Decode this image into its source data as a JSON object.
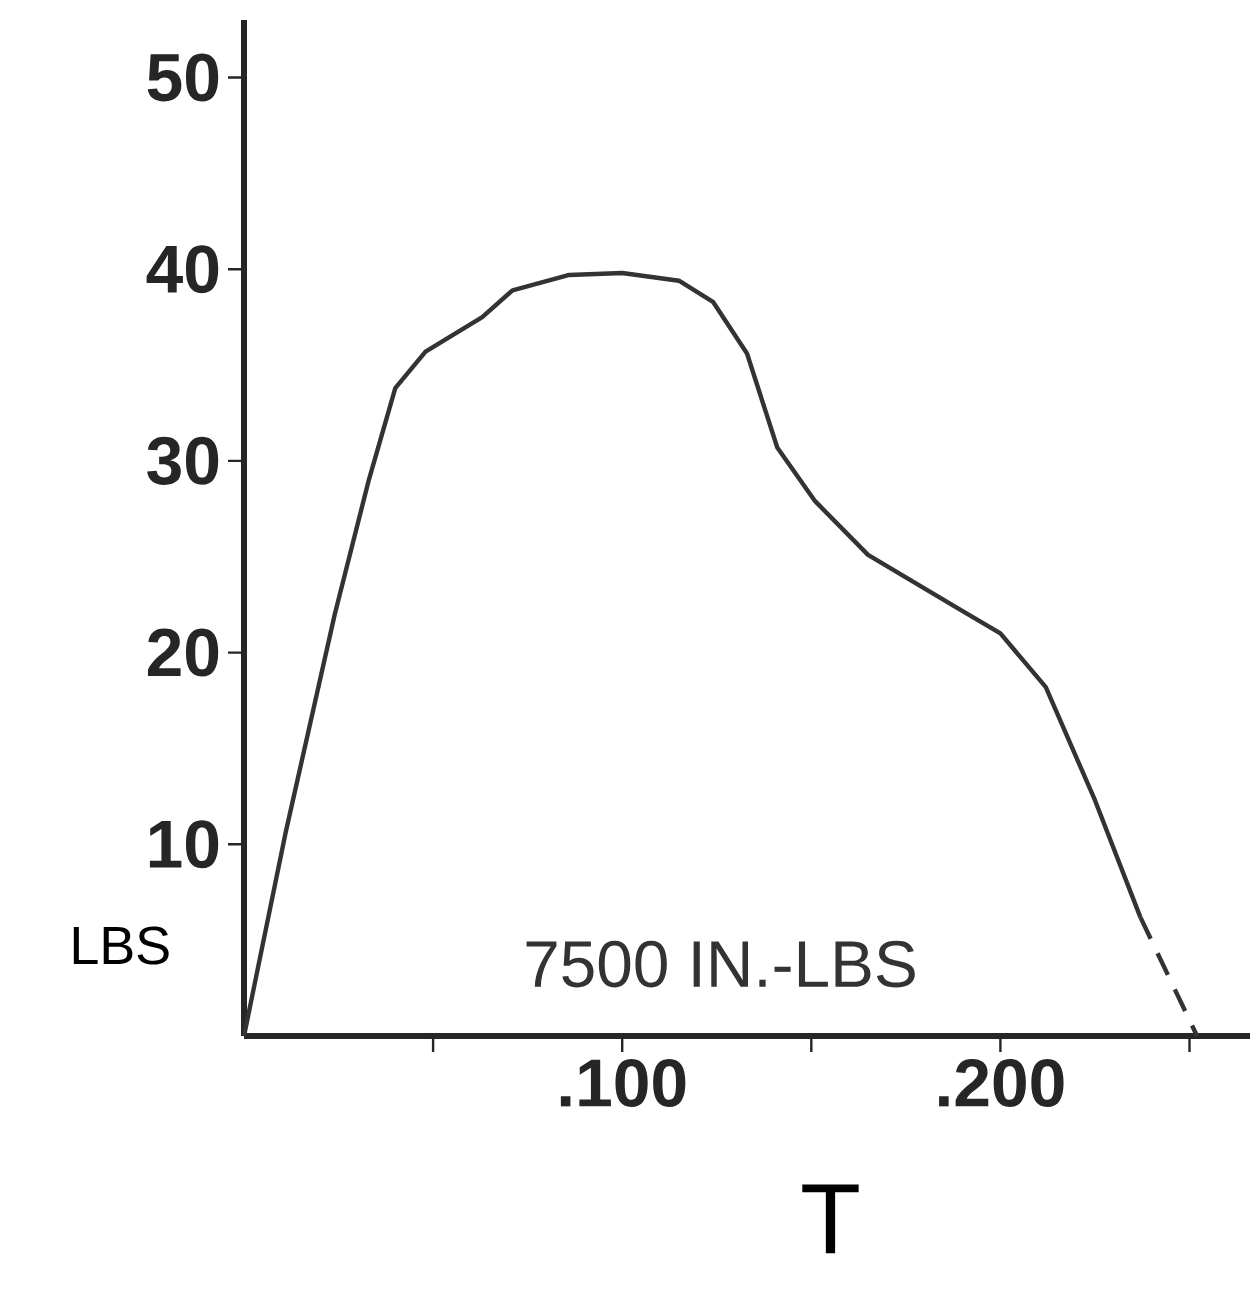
{
  "chart_data": {
    "type": "line",
    "xlabel": "T",
    "ylabel": "LBS",
    "annotations": [
      "7500 IN.-LBS"
    ],
    "xlim": [
      0,
      0.266
    ],
    "ylim": [
      0,
      53
    ],
    "xticks": [
      {
        "value": 0.05,
        "label": null
      },
      {
        "value": 0.1,
        "label": ".100"
      },
      {
        "value": 0.15,
        "label": null
      },
      {
        "value": 0.2,
        "label": ".200"
      },
      {
        "value": 0.25,
        "label": null
      }
    ],
    "yticks": [
      10,
      20,
      30,
      40,
      50
    ],
    "marker": "none",
    "series": [
      {
        "color": "#333333",
        "line_style": "solid",
        "x": [
          0,
          0.011,
          0.024,
          0.033,
          0.04,
          0.048,
          0.063,
          0.071,
          0.086,
          0.1,
          0.115,
          0.124,
          0.133,
          0.141,
          0.151,
          0.165,
          0.188,
          0.2,
          0.212,
          0.225,
          0.237
        ],
        "values": [
          0,
          10.6,
          22,
          29,
          33.8,
          35.7,
          37.5,
          38.9,
          39.7,
          39.8,
          39.4,
          38.3,
          35.6,
          30.7,
          27.9,
          25.1,
          22.4,
          21,
          18.2,
          12.3,
          6.2
        ]
      },
      {
        "color": "#333333",
        "line_style": "dashed",
        "x": [
          0.237,
          0.252
        ],
        "values": [
          6.2,
          0
        ]
      }
    ]
  }
}
